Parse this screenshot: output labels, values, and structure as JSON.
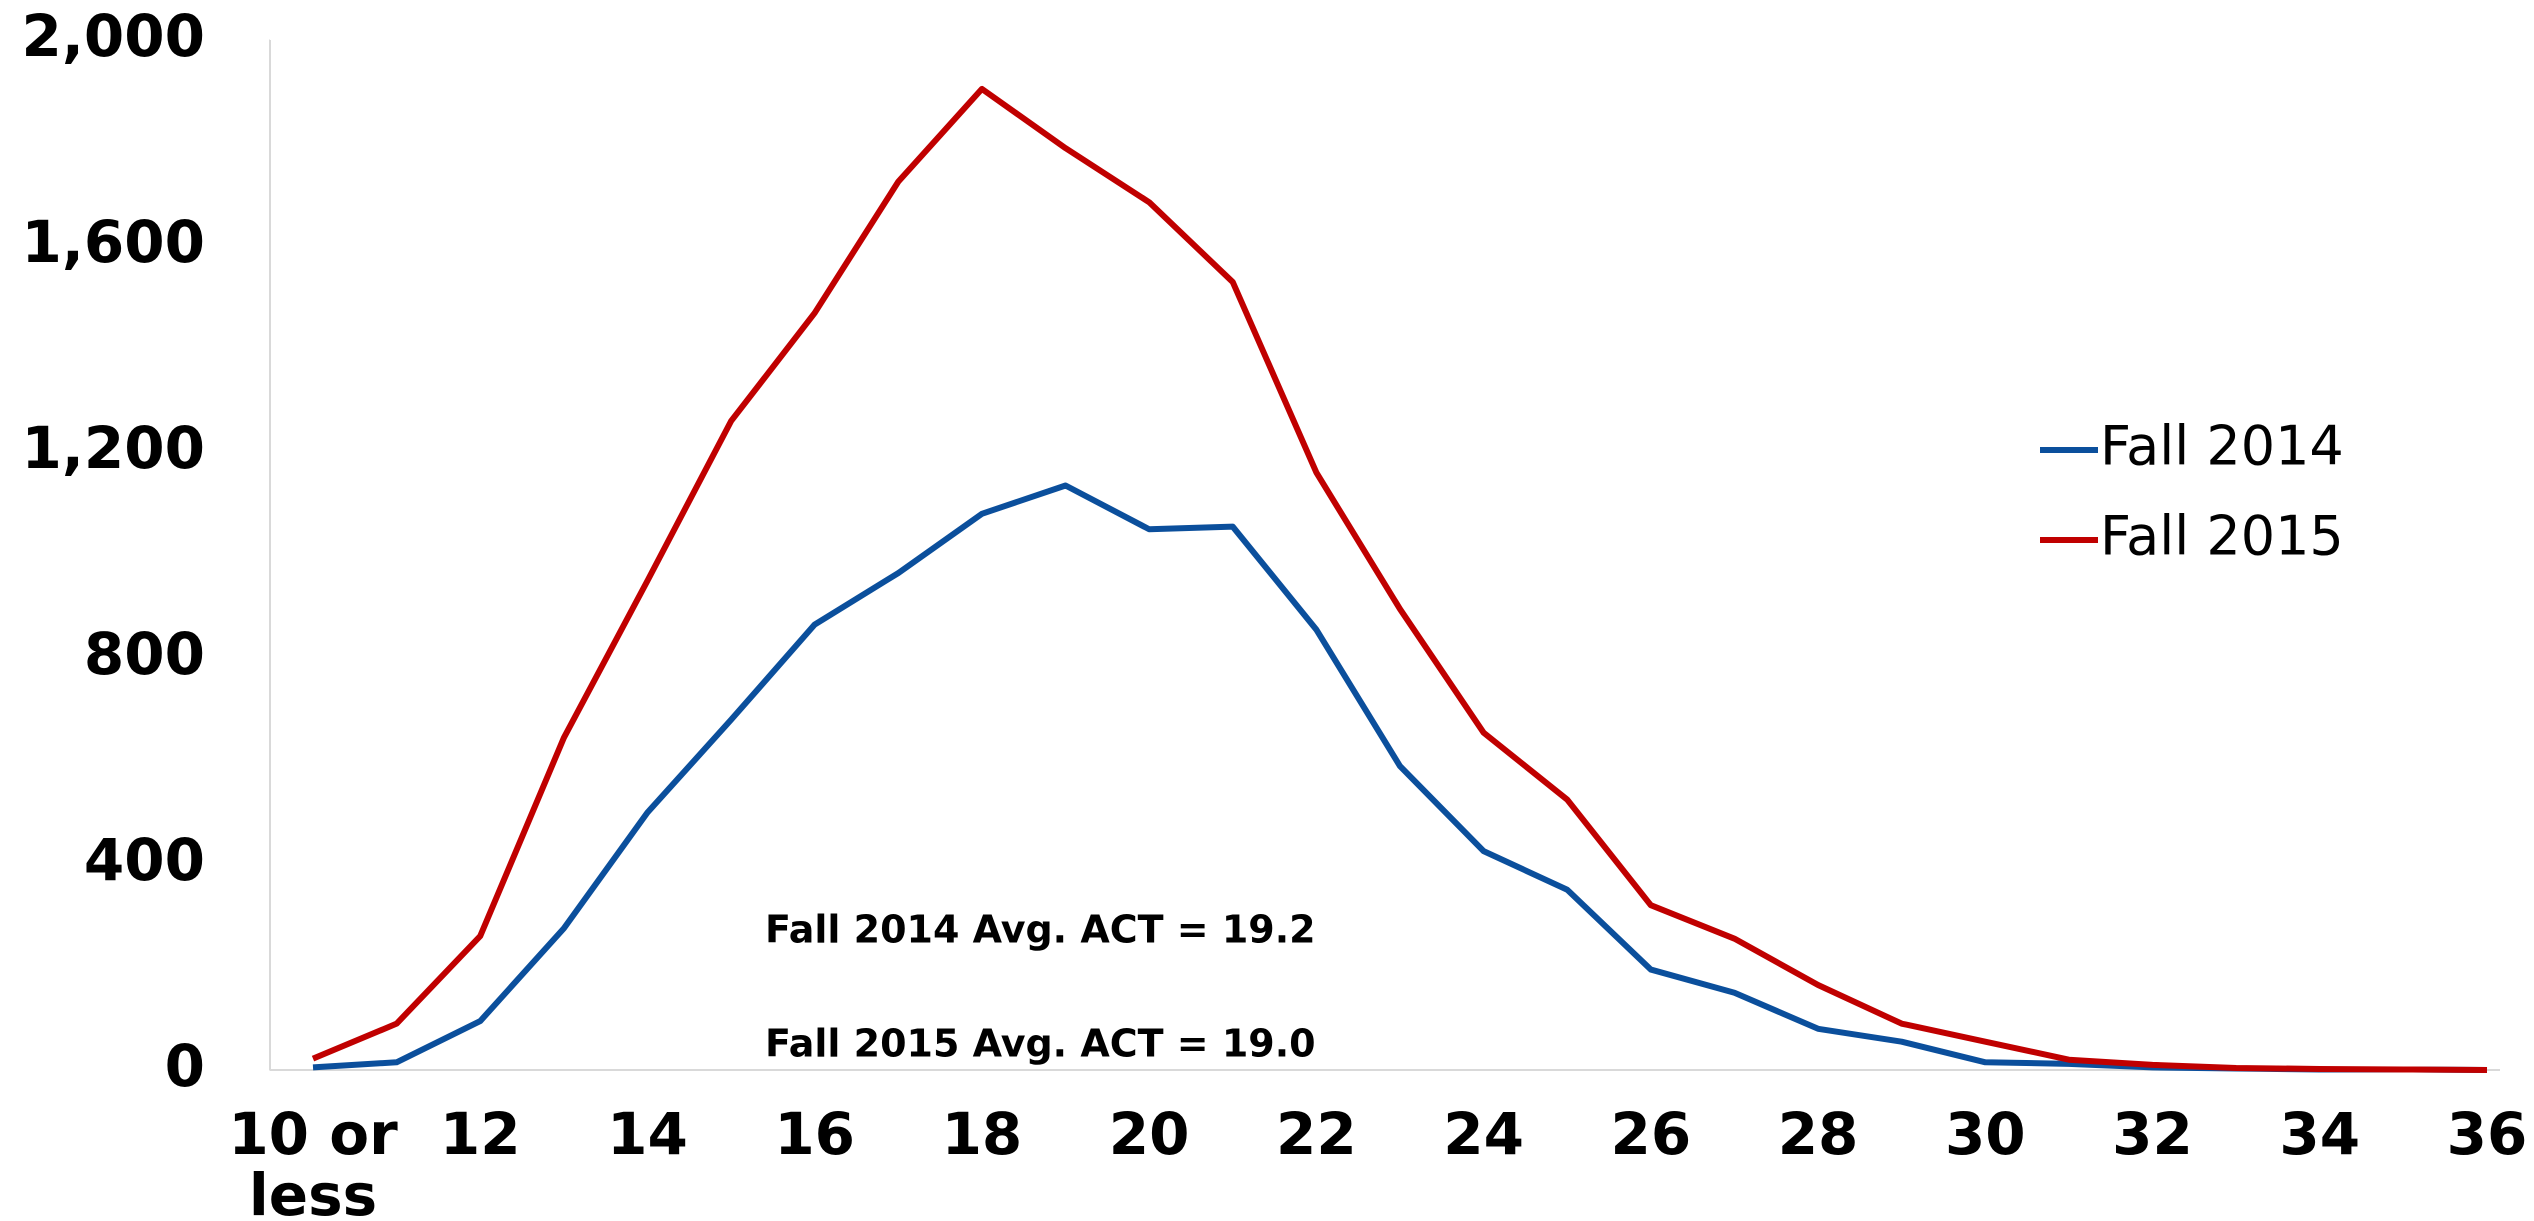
{
  "chart_data": {
    "type": "line",
    "categories": [
      "10 or less",
      null,
      "12",
      null,
      "14",
      null,
      "16",
      null,
      "18",
      null,
      "20",
      null,
      "22",
      null,
      "24",
      null,
      "26",
      null,
      "28",
      null,
      "30",
      null,
      "32",
      null,
      "34",
      null,
      "36"
    ],
    "series": [
      {
        "name": "Fall 2014",
        "color": "#0b4f9c",
        "values": [
          5,
          15,
          95,
          275,
          500,
          680,
          865,
          965,
          1080,
          1135,
          1050,
          1055,
          855,
          590,
          425,
          350,
          195,
          150,
          80,
          55,
          15,
          12,
          5,
          3,
          1,
          1,
          0
        ]
      },
      {
        "name": "Fall 2015",
        "color": "#c00000",
        "values": [
          22,
          90,
          260,
          645,
          950,
          1260,
          1470,
          1725,
          1905,
          1790,
          1685,
          1530,
          1160,
          895,
          655,
          525,
          320,
          255,
          165,
          90,
          55,
          20,
          10,
          4,
          2,
          1,
          0
        ]
      }
    ],
    "ylim": [
      0,
      2000
    ],
    "yticks": [
      0,
      400,
      800,
      {
        "value": 1200,
        "label": "1,200"
      },
      {
        "value": 1600,
        "label": "1,600"
      },
      {
        "value": 2000,
        "label": "2,000"
      }
    ],
    "annotations": [
      "Fall 2014 Avg. ACT = 19.2",
      "Fall 2015 Avg. ACT = 19.0"
    ],
    "legend": "right",
    "grid": false
  }
}
